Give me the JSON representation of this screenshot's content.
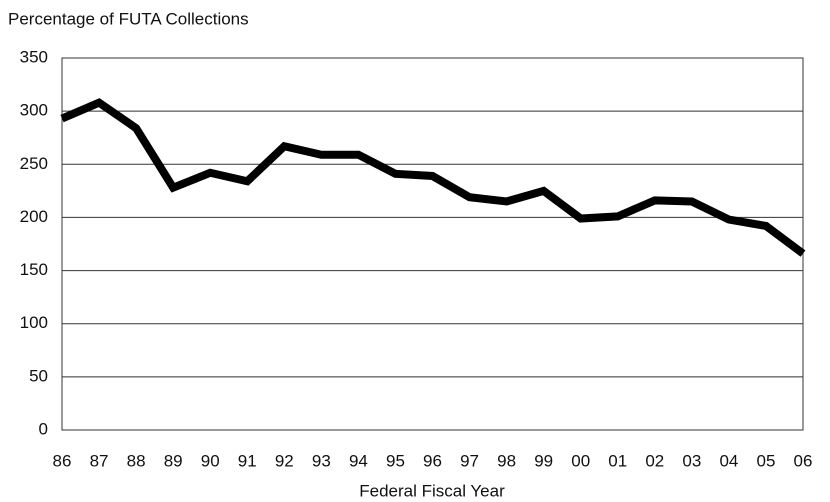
{
  "chart_data": {
    "type": "line",
    "title": "Percentage of FUTA Collections",
    "x_label": "Federal Fiscal Year",
    "categories": [
      "86",
      "87",
      "88",
      "89",
      "90",
      "91",
      "92",
      "93",
      "94",
      "95",
      "96",
      "97",
      "98",
      "99",
      "00",
      "01",
      "02",
      "03",
      "04",
      "05",
      "06"
    ],
    "values": [
      293,
      308,
      284,
      228,
      242,
      234,
      267,
      259,
      259,
      241,
      239,
      219,
      215,
      225,
      199,
      201,
      216,
      215,
      198,
      192,
      166
    ],
    "color": "#000000",
    "ylim": [
      0,
      350
    ],
    "yticks": [
      0,
      50,
      100,
      150,
      200,
      250,
      300,
      350
    ],
    "grid": true
  }
}
